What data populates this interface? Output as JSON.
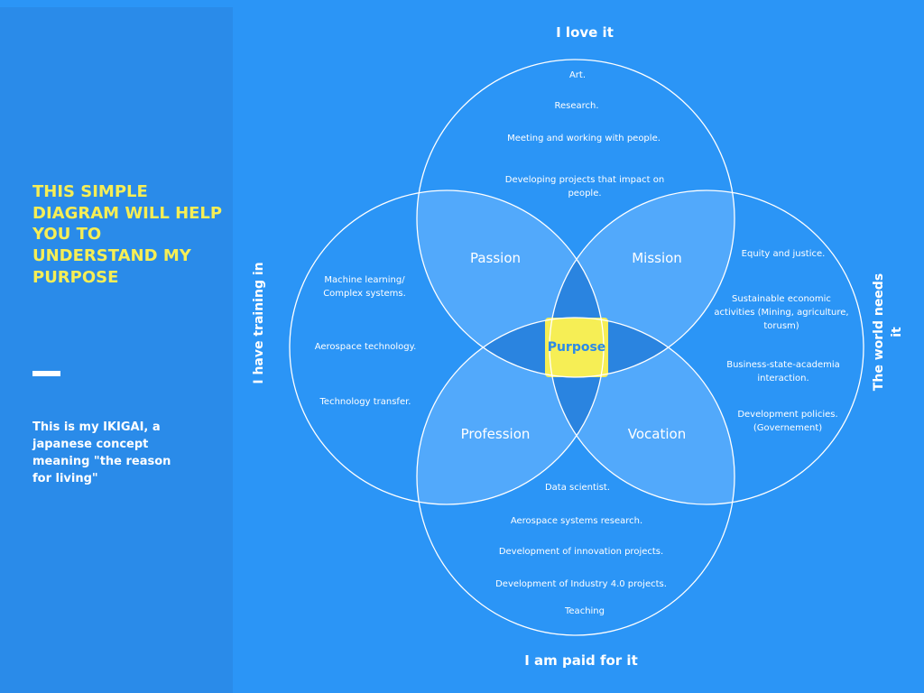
{
  "sidebar": {
    "title": "THIS SIMPLE DIAGRAM WILL HELP YOU TO UNDERSTAND MY PURPOSE",
    "description": "This is my IKIGAI, a japanese concept meaning \"the reason for living\""
  },
  "labels": {
    "top": "I love it",
    "bottom": "I am paid for it",
    "left": "I have training in",
    "right": "The world needs it"
  },
  "zones": {
    "passion": "Passion",
    "mission": "Mission",
    "profession": "Profession",
    "vocation": "Vocation",
    "purpose": "Purpose"
  },
  "love_items": [
    "Art.",
    "Research.",
    "Meeting and working with people.",
    "Developing projects that impact on people."
  ],
  "training_items": [
    "Machine learning/ Complex systems.",
    "Aerospace technology.",
    "Technology transfer."
  ],
  "world_items": [
    "Equity and justice.",
    "Sustainable economic activities (Mining, agriculture, torusm)",
    "Business-state-academia interaction.",
    "Development policies. (Governement)"
  ],
  "paid_items": [
    "Data scientist.",
    "Aerospace systems research.",
    "Development of innovation projects.",
    "Development of Industry 4.0 projects.",
    "Teaching"
  ],
  "colors": {
    "background": "#2b95f6",
    "sidebar": "#2a8be9",
    "accent_yellow": "#f6ee55",
    "lens_fill": "#52a9fb",
    "inner_fill": "#2a84e0",
    "purpose_text": "#2b8ae8"
  }
}
